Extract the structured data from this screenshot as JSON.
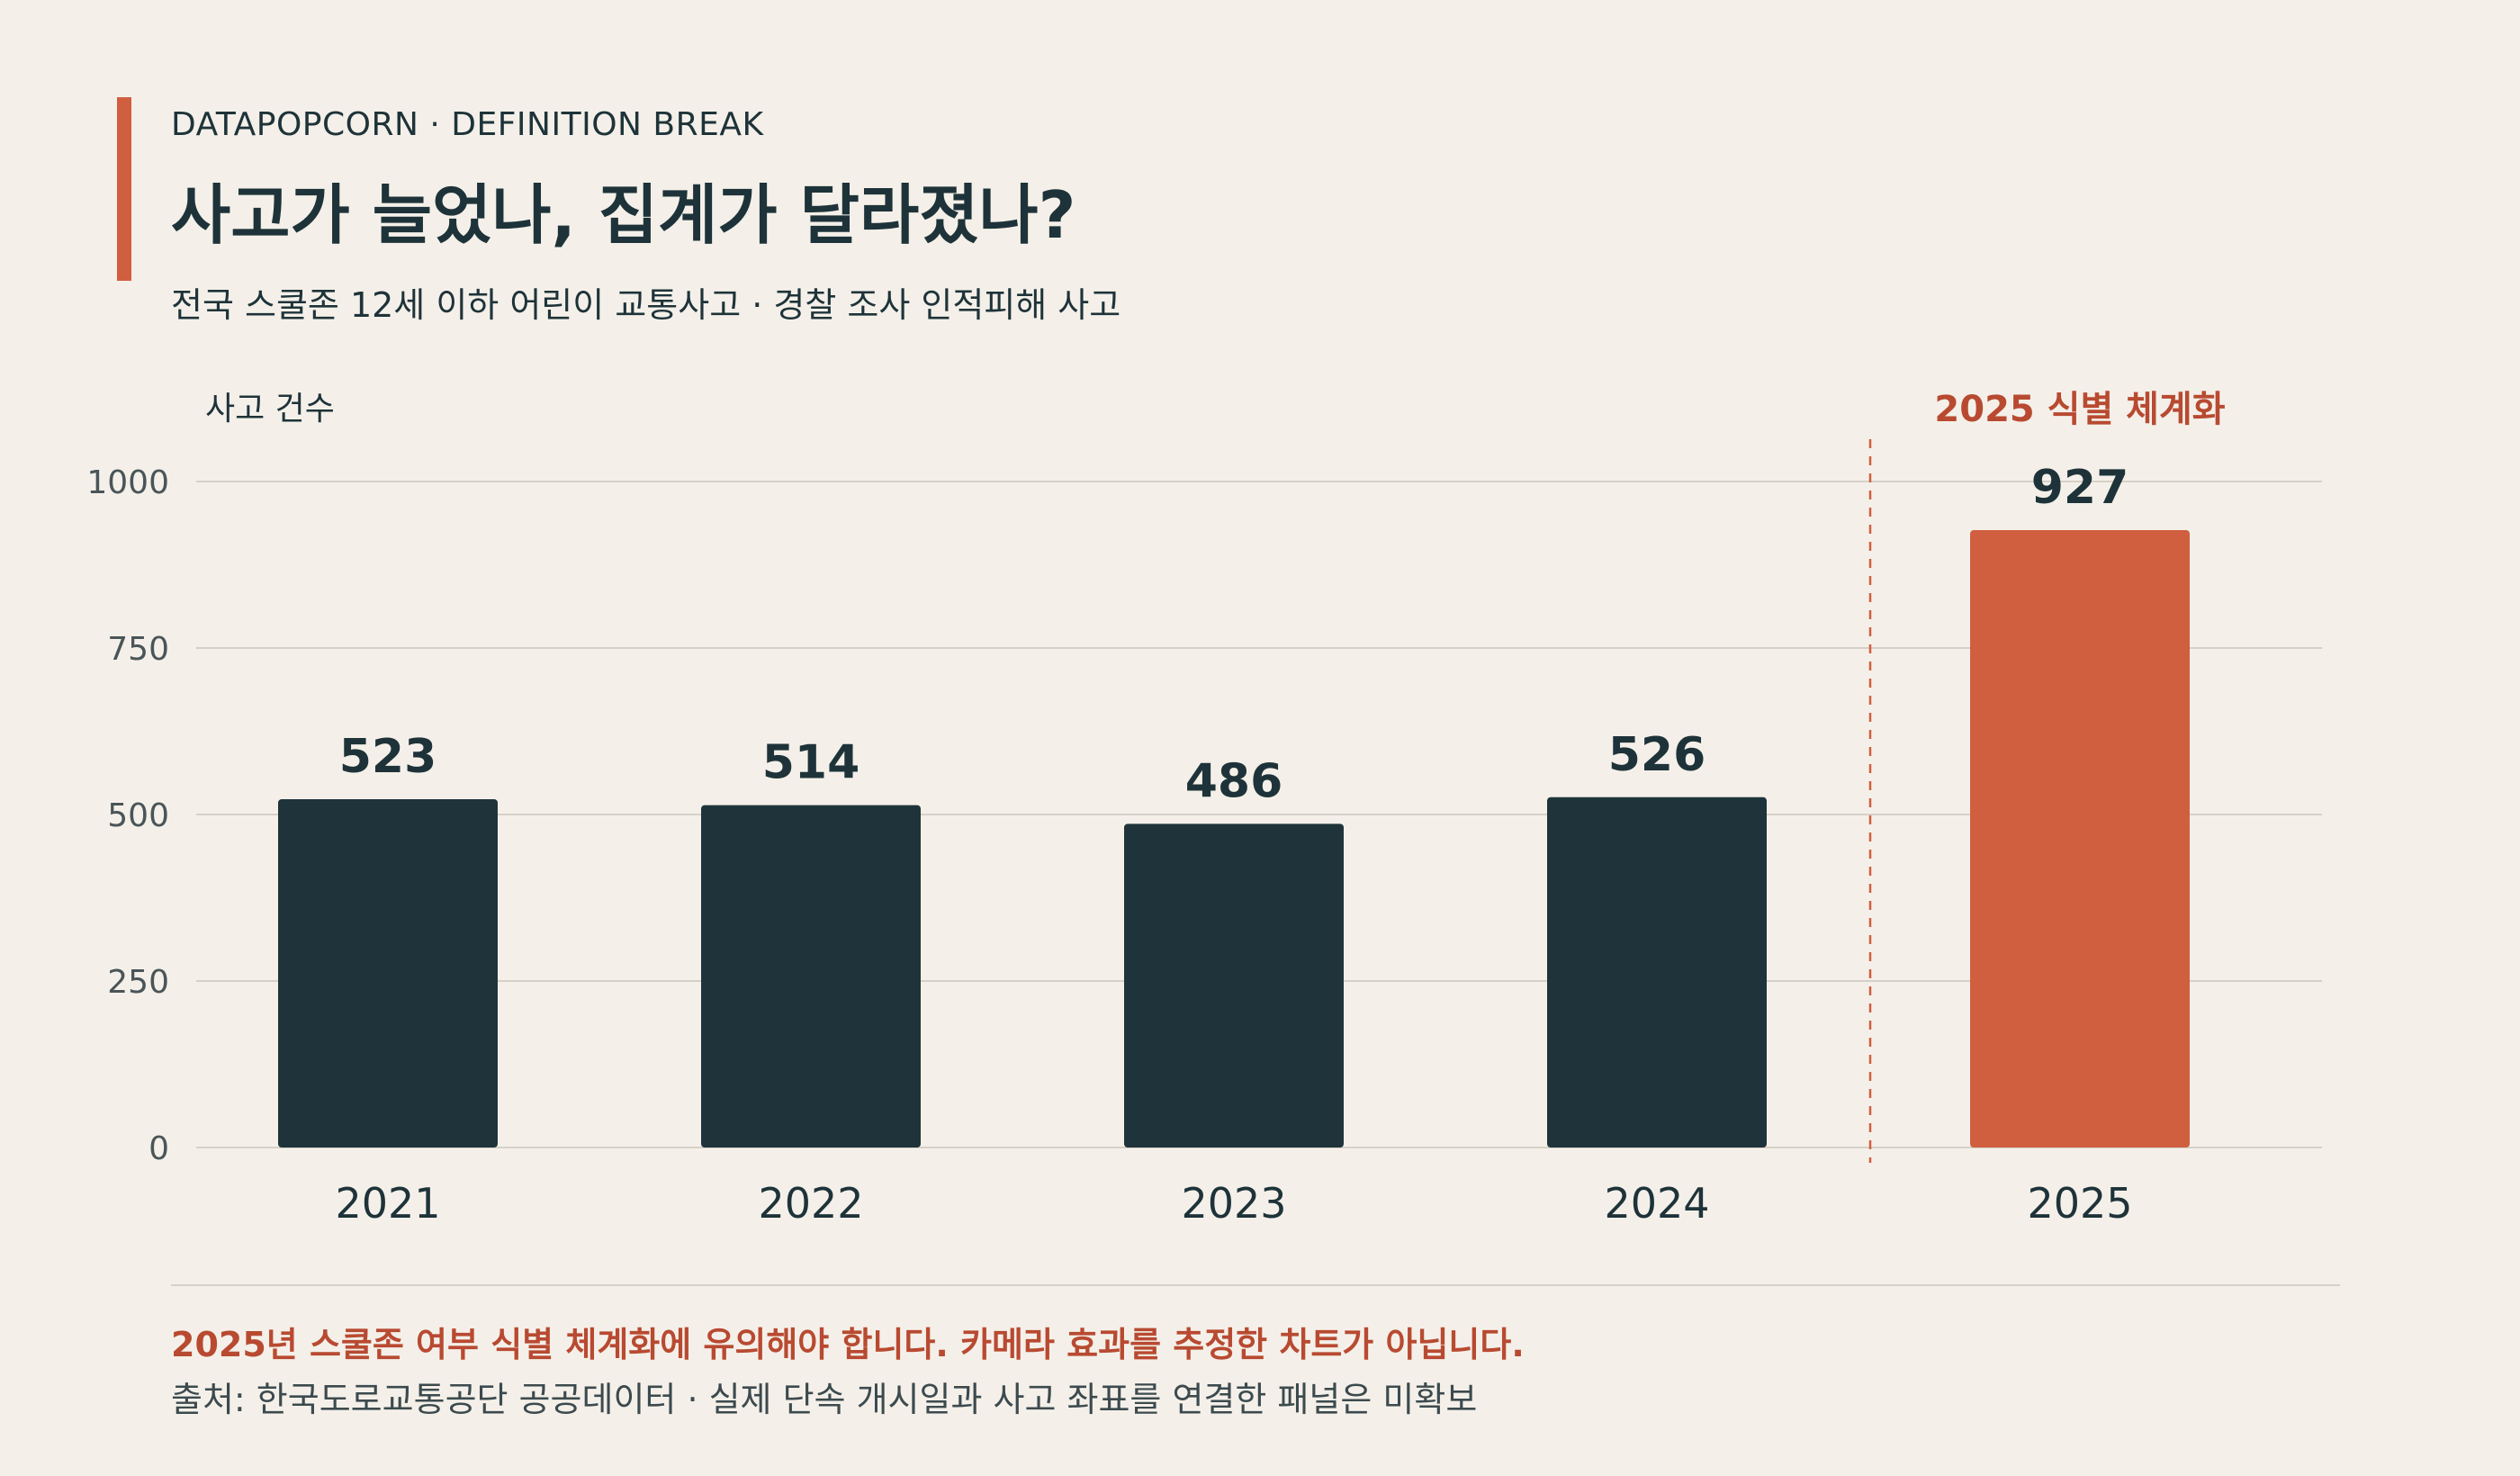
{
  "header": {
    "eyebrow": "DATAPOPCORN · DEFINITION BREAK",
    "title": "사고가 늘었나, 집계가 달라졌나?",
    "subtitle": "전국 스쿨존 12세 이하 어린이 교통사고 · 경찰 조사 인적피해 사고"
  },
  "chart_data": {
    "type": "bar",
    "ylabel": "사고 건수",
    "xlabel": "",
    "ylim": [
      0,
      1000
    ],
    "yticks": [
      0,
      250,
      500,
      750,
      1000
    ],
    "categories": [
      "2021",
      "2022",
      "2023",
      "2024",
      "2025"
    ],
    "values": [
      523,
      514,
      486,
      526,
      927
    ],
    "highlight_index": 4,
    "annotation": "2025 식별 체계화",
    "grid": true,
    "colors": {
      "bar": "#1e343a",
      "highlight": "#d05f3f",
      "annotation": "#b84a31",
      "grid": "#d6d1c8",
      "label": "#1e3339",
      "tick": "#4a5558"
    }
  },
  "footer": {
    "note": "2025년 스쿨존 여부 식별 체계화에 유의해야 합니다. 카메라 효과를 추정한 차트가 아닙니다.",
    "source": "출처: 한국도로교통공단 공공데이터 · 실제 단속 개시일과 사고 좌표를 연결한 패널은 미확보"
  }
}
